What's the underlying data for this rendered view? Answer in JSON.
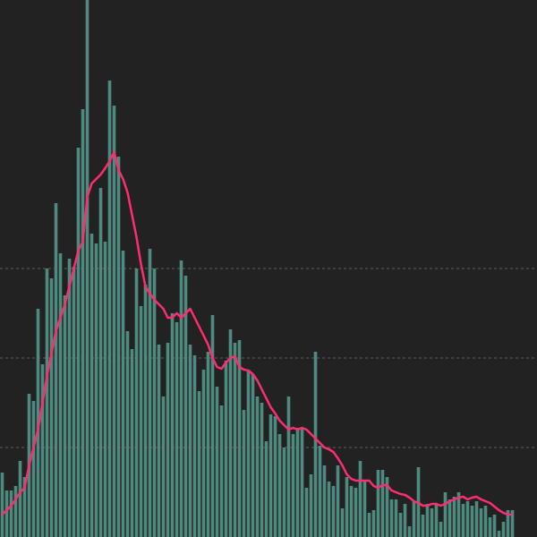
{
  "chart_data": {
    "type": "bar",
    "categories": [
      null,
      null,
      null,
      null,
      null,
      null,
      null,
      null,
      null,
      null,
      null,
      null,
      null,
      null,
      null,
      null,
      null,
      null,
      null,
      null,
      null,
      null,
      null,
      null,
      null,
      null,
      null,
      null,
      null,
      null,
      null,
      null,
      null,
      null,
      null,
      null,
      null,
      null,
      null,
      null,
      null,
      null,
      null,
      null,
      null,
      null,
      null,
      null,
      null,
      null,
      null,
      null,
      null,
      null,
      null,
      null,
      null,
      null,
      null,
      null,
      null,
      null,
      null,
      null,
      null,
      null,
      null,
      null,
      null,
      null,
      null,
      null,
      null,
      null,
      null,
      null,
      null,
      null,
      null,
      null,
      null,
      null,
      null,
      null,
      null,
      null,
      null,
      null,
      null,
      null,
      null,
      null,
      null,
      null,
      null,
      null,
      null,
      null,
      null,
      null,
      null,
      null,
      null,
      null,
      null,
      null,
      null,
      null,
      null,
      null,
      null,
      null,
      null,
      null,
      null
    ],
    "series": [
      {
        "type": "bar",
        "color": "#4f8a80",
        "values": [
          72,
          52,
          52,
          57,
          85,
          67,
          160,
          152,
          255,
          193,
          300,
          289,
          373,
          317,
          270,
          311,
          302,
          435,
          478,
          600,
          339,
          328,
          390,
          330,
          510,
          482,
          425,
          320,
          230,
          210,
          300,
          258,
          282,
          322,
          300,
          215,
          157,
          217,
          250,
          240,
          309,
          292,
          215,
          203,
          163,
          187,
          207,
          248,
          168,
          147,
          197,
          232,
          217,
          220,
          142,
          187,
          182,
          157,
          150,
          107,
          137,
          135,
          115,
          100,
          157,
          115,
          122,
          122,
          55,
          70,
          207,
          102,
          80,
          62,
          57,
          80,
          32,
          67,
          57,
          55,
          85,
          62,
          27,
          30,
          75,
          75,
          67,
          42,
          42,
          27,
          37,
          12,
          40,
          78,
          25,
          37,
          32,
          37,
          17,
          50,
          42,
          45,
          50,
          37,
          40,
          35,
          40,
          32,
          35,
          22,
          25,
          7,
          17,
          30,
          30
        ]
      },
      {
        "type": "line",
        "color": "#ff2d6f",
        "values": [
          25,
          30,
          35,
          42,
          50,
          55,
          80,
          100,
          120,
          150,
          180,
          205,
          230,
          245,
          260,
          280,
          300,
          320,
          330,
          380,
          395,
          400,
          405,
          412,
          420,
          430,
          410,
          400,
          385,
          360,
          335,
          305,
          280,
          272,
          265,
          260,
          255,
          245,
          245,
          250,
          245,
          250,
          255,
          245,
          235,
          225,
          215,
          200,
          190,
          188,
          195,
          200,
          202,
          190,
          187,
          186,
          182,
          175,
          165,
          155,
          145,
          138,
          130,
          125,
          120,
          122,
          120,
          122,
          120,
          115,
          110,
          105,
          100,
          98,
          95,
          88,
          80,
          70,
          65,
          63,
          63,
          63,
          63,
          57,
          55,
          58,
          58,
          52,
          50,
          48,
          47,
          44,
          40,
          38,
          35,
          35,
          37,
          37,
          35,
          37,
          40,
          42,
          44,
          45,
          42,
          44,
          45,
          42,
          40,
          38,
          34,
          30,
          27,
          25,
          25
        ]
      }
    ],
    "ylim": [
      0,
      600
    ],
    "yticks": [
      100,
      200,
      300
    ],
    "grid": true
  }
}
